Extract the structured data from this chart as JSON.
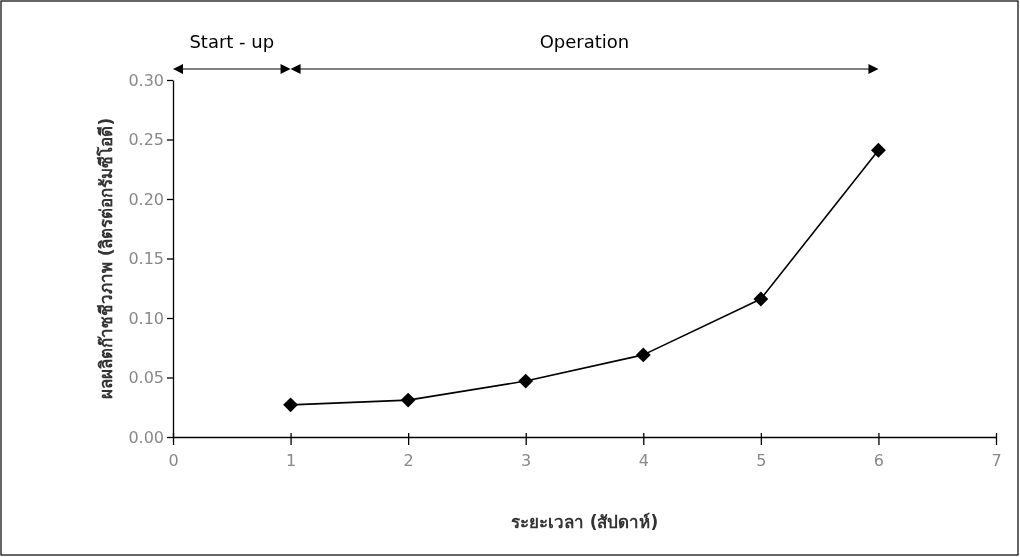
{
  "chart_data": {
    "type": "line",
    "xlabel": "ระยะเวลา (สัปดาห์)",
    "ylabel": "ผลผลิตก๊าซชีวภาพ (ลิตรต่อกรัมซีโอดี)",
    "x": [
      1,
      2,
      3,
      4,
      5,
      6
    ],
    "series": [
      {
        "color": "#000000",
        "values": [
          0.027,
          0.031,
          0.047,
          0.069,
          0.116,
          0.241
        ]
      }
    ],
    "xlim": [
      0,
      7
    ],
    "xticks": [
      0,
      1,
      2,
      3,
      4,
      5,
      6,
      7
    ],
    "ylim": [
      0,
      0.3
    ],
    "yticks": [
      {
        "value": 0,
        "label": "0.00"
      },
      {
        "value": 0.05,
        "label": "0.05"
      },
      {
        "value": 0.1,
        "label": "0.10"
      },
      {
        "value": 0.15,
        "label": "0.15"
      },
      {
        "value": 0.2,
        "label": "0.20"
      },
      {
        "value": 0.25,
        "label": "0.25"
      },
      {
        "value": 0.3,
        "label": "0.30"
      }
    ],
    "annotations": [
      "Start - up",
      "Operation"
    ],
    "marker": "diamond",
    "line_style": "solid"
  }
}
